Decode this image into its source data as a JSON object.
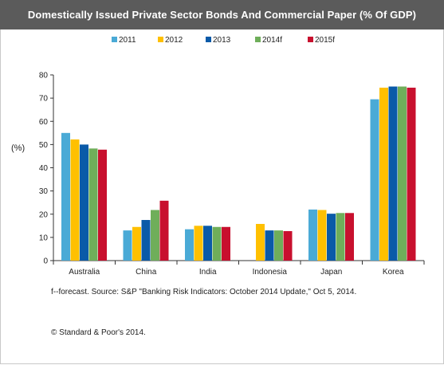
{
  "chart_data": {
    "type": "bar",
    "title": "Domestically Issued Private Sector Bonds And Commercial Paper (% Of GDP)",
    "ylabel": "(%)",
    "xlabel": "",
    "ylim": [
      0,
      80
    ],
    "yticks": [
      0,
      10,
      20,
      30,
      40,
      50,
      60,
      70,
      80
    ],
    "grid": false,
    "legend": "top",
    "categories": [
      "Australia",
      "China",
      "India",
      "Indonesia",
      "Japan",
      "Korea"
    ],
    "series": [
      {
        "name": "2011",
        "color": "#4aaad6",
        "values": [
          55,
          13,
          13.5,
          null,
          22,
          69.5
        ]
      },
      {
        "name": "2012",
        "color": "#ffc000",
        "values": [
          52.2,
          14.5,
          15,
          15.8,
          21.8,
          74.5
        ]
      },
      {
        "name": "2013",
        "color": "#0a5aa8",
        "values": [
          50,
          17.5,
          15,
          13,
          20.2,
          75
        ]
      },
      {
        "name": "2014f",
        "color": "#6fae5a",
        "values": [
          48.3,
          21.8,
          14.5,
          13,
          20.5,
          75
        ]
      },
      {
        "name": "2015f",
        "color": "#c8102e",
        "values": [
          47.8,
          25.8,
          14.5,
          12.7,
          20.5,
          74.5
        ]
      }
    ]
  },
  "footnote": "f--forecast. Source: S&P \"Banking Risk Indicators: October 2014 Update,\" Oct 5,  2014.",
  "copyright": "© Standard & Poor's 2014."
}
